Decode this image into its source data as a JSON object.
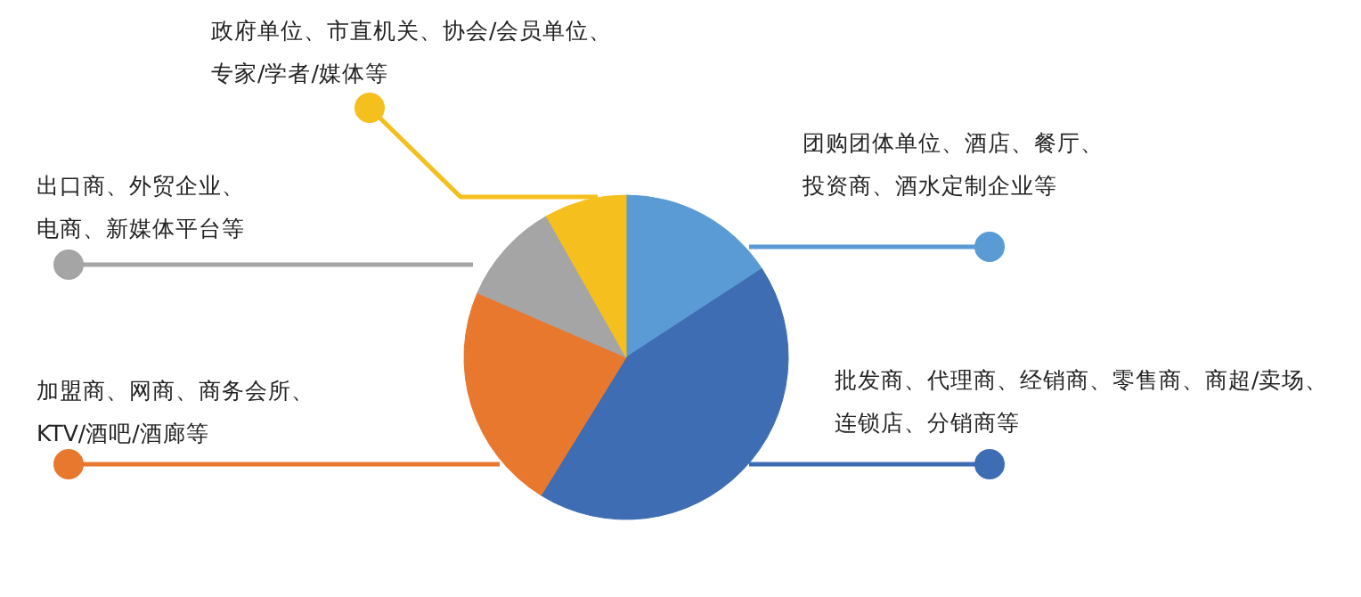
{
  "chart_data": {
    "type": "pie",
    "categories": [
      "团购团体单位、酒店、餐厅、投资商、酒水定制企业等",
      "批发商、代理商、经销商、零售商、商超/卖场、连锁店、分销商等",
      "加盟商、网商、商务会所、KTV/酒吧/酒廊等",
      "出口商、外贸企业、电商、新媒体平台等",
      "政府单位、市直机关、协会/会员单位、专家/学者/媒体等"
    ],
    "values": [
      15.8,
      43,
      22.7,
      10.3,
      8.2
    ],
    "colors": [
      "#5b9bd5",
      "#3f6db3",
      "#e8782e",
      "#a5a5a5",
      "#f5bf1d"
    ]
  }
}
